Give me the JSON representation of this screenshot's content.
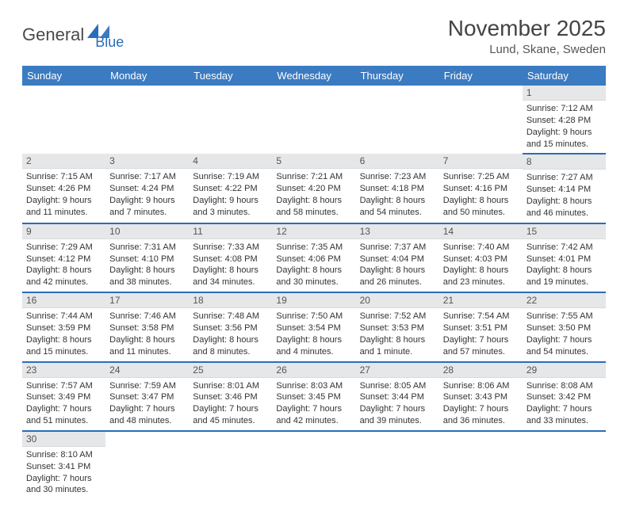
{
  "logo": {
    "text1": "General",
    "text2": "Blue"
  },
  "title": "November 2025",
  "location": "Lund, Skane, Sweden",
  "colors": {
    "header_bg": "#3b7bc1",
    "header_text": "#ffffff",
    "row_sep": "#2a6db8",
    "daynum_bg": "#e6e7e9",
    "logo_gray": "#4a4a4a",
    "logo_blue": "#2a6db8"
  },
  "weekdays": [
    "Sunday",
    "Monday",
    "Tuesday",
    "Wednesday",
    "Thursday",
    "Friday",
    "Saturday"
  ],
  "weeks": [
    [
      null,
      null,
      null,
      null,
      null,
      null,
      {
        "n": "1",
        "sr": "7:12 AM",
        "ss": "4:28 PM",
        "dl": "9 hours and 15 minutes."
      }
    ],
    [
      {
        "n": "2",
        "sr": "7:15 AM",
        "ss": "4:26 PM",
        "dl": "9 hours and 11 minutes."
      },
      {
        "n": "3",
        "sr": "7:17 AM",
        "ss": "4:24 PM",
        "dl": "9 hours and 7 minutes."
      },
      {
        "n": "4",
        "sr": "7:19 AM",
        "ss": "4:22 PM",
        "dl": "9 hours and 3 minutes."
      },
      {
        "n": "5",
        "sr": "7:21 AM",
        "ss": "4:20 PM",
        "dl": "8 hours and 58 minutes."
      },
      {
        "n": "6",
        "sr": "7:23 AM",
        "ss": "4:18 PM",
        "dl": "8 hours and 54 minutes."
      },
      {
        "n": "7",
        "sr": "7:25 AM",
        "ss": "4:16 PM",
        "dl": "8 hours and 50 minutes."
      },
      {
        "n": "8",
        "sr": "7:27 AM",
        "ss": "4:14 PM",
        "dl": "8 hours and 46 minutes."
      }
    ],
    [
      {
        "n": "9",
        "sr": "7:29 AM",
        "ss": "4:12 PM",
        "dl": "8 hours and 42 minutes."
      },
      {
        "n": "10",
        "sr": "7:31 AM",
        "ss": "4:10 PM",
        "dl": "8 hours and 38 minutes."
      },
      {
        "n": "11",
        "sr": "7:33 AM",
        "ss": "4:08 PM",
        "dl": "8 hours and 34 minutes."
      },
      {
        "n": "12",
        "sr": "7:35 AM",
        "ss": "4:06 PM",
        "dl": "8 hours and 30 minutes."
      },
      {
        "n": "13",
        "sr": "7:37 AM",
        "ss": "4:04 PM",
        "dl": "8 hours and 26 minutes."
      },
      {
        "n": "14",
        "sr": "7:40 AM",
        "ss": "4:03 PM",
        "dl": "8 hours and 23 minutes."
      },
      {
        "n": "15",
        "sr": "7:42 AM",
        "ss": "4:01 PM",
        "dl": "8 hours and 19 minutes."
      }
    ],
    [
      {
        "n": "16",
        "sr": "7:44 AM",
        "ss": "3:59 PM",
        "dl": "8 hours and 15 minutes."
      },
      {
        "n": "17",
        "sr": "7:46 AM",
        "ss": "3:58 PM",
        "dl": "8 hours and 11 minutes."
      },
      {
        "n": "18",
        "sr": "7:48 AM",
        "ss": "3:56 PM",
        "dl": "8 hours and 8 minutes."
      },
      {
        "n": "19",
        "sr": "7:50 AM",
        "ss": "3:54 PM",
        "dl": "8 hours and 4 minutes."
      },
      {
        "n": "20",
        "sr": "7:52 AM",
        "ss": "3:53 PM",
        "dl": "8 hours and 1 minute."
      },
      {
        "n": "21",
        "sr": "7:54 AM",
        "ss": "3:51 PM",
        "dl": "7 hours and 57 minutes."
      },
      {
        "n": "22",
        "sr": "7:55 AM",
        "ss": "3:50 PM",
        "dl": "7 hours and 54 minutes."
      }
    ],
    [
      {
        "n": "23",
        "sr": "7:57 AM",
        "ss": "3:49 PM",
        "dl": "7 hours and 51 minutes."
      },
      {
        "n": "24",
        "sr": "7:59 AM",
        "ss": "3:47 PM",
        "dl": "7 hours and 48 minutes."
      },
      {
        "n": "25",
        "sr": "8:01 AM",
        "ss": "3:46 PM",
        "dl": "7 hours and 45 minutes."
      },
      {
        "n": "26",
        "sr": "8:03 AM",
        "ss": "3:45 PM",
        "dl": "7 hours and 42 minutes."
      },
      {
        "n": "27",
        "sr": "8:05 AM",
        "ss": "3:44 PM",
        "dl": "7 hours and 39 minutes."
      },
      {
        "n": "28",
        "sr": "8:06 AM",
        "ss": "3:43 PM",
        "dl": "7 hours and 36 minutes."
      },
      {
        "n": "29",
        "sr": "8:08 AM",
        "ss": "3:42 PM",
        "dl": "7 hours and 33 minutes."
      }
    ],
    [
      {
        "n": "30",
        "sr": "8:10 AM",
        "ss": "3:41 PM",
        "dl": "7 hours and 30 minutes."
      },
      null,
      null,
      null,
      null,
      null,
      null
    ]
  ],
  "labels": {
    "sunrise": "Sunrise:",
    "sunset": "Sunset:",
    "daylight": "Daylight:"
  }
}
